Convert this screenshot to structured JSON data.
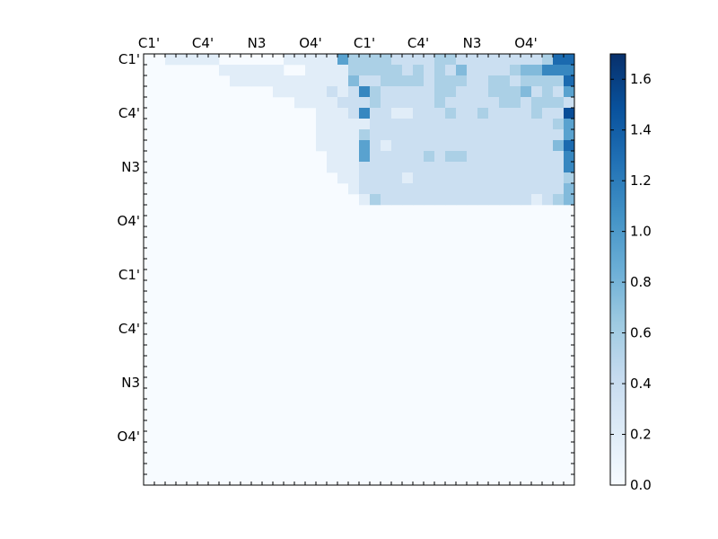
{
  "chart_data": {
    "type": "heatmap",
    "title": "",
    "xlabel": "",
    "ylabel": "",
    "n": 40,
    "x_ticklabels": [
      "C1'",
      "C4'",
      "N3",
      "O4'",
      "C1'",
      "C4'",
      "N3",
      "O4'"
    ],
    "y_ticklabels": [
      "C1'",
      "C4'",
      "N3",
      "O4'",
      "C1'",
      "C4'",
      "N3",
      "O4'"
    ],
    "x_tick_indices": [
      0,
      5,
      10,
      15,
      20,
      25,
      30,
      35
    ],
    "y_tick_indices": [
      0,
      5,
      10,
      15,
      20,
      25,
      30,
      35
    ],
    "colorbar": {
      "min": 0.0,
      "max": 1.7,
      "ticks": [
        0.0,
        0.2,
        0.4,
        0.6,
        0.8,
        1.0,
        1.2,
        1.4,
        1.6
      ],
      "ticklabels": [
        "0.0",
        "0.2",
        "0.4",
        "0.6",
        "0.8",
        "1.0",
        "1.2",
        "1.4",
        "1.6"
      ],
      "colormap": "Blues"
    },
    "rows": [
      "0011111000000111115333322223322222222377777",
      "0000000111111001111333332323242222344666666",
      "0000000011111111111422333323332233233337666",
      "0000000000001111121263222223322233342325888",
      "0000000000000011112223222223222223323332777",
      "0000000000000000111262211222322322223228888",
      "0000000000000000111112222222222222222235555",
      "0000000000000000111132222222222222222225666",
      "0000000000000000111152122222222222222247888",
      "0000000000000000011152222232332222222226888",
      "0000000000000000011122222222222222222226677",
      "0000000000000000001122221222222222222223455",
      "0000000000000000000122222222222222222224555",
      "0000000000000000000013222222222222221234899",
      "0000000000000000000000000000000000000000000",
      "0000000000000000000000000000000000000000000"
    ]
  }
}
